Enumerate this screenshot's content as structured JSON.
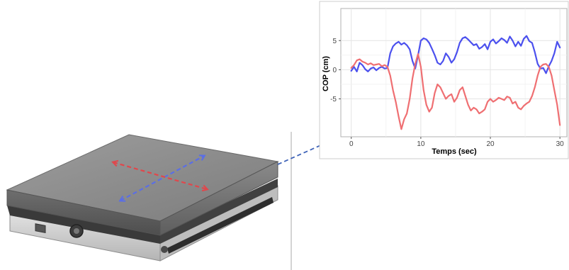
{
  "figure": {
    "colors": {
      "ap_arrow": "#5a6ee6",
      "ml_arrow": "#e0474c",
      "connector": "#3f63b8",
      "divider": "#aaaaaa"
    },
    "plate_icon": "force-plate"
  },
  "chart_data": {
    "type": "line",
    "title": "",
    "xlabel": "Temps (sec)",
    "ylabel": "COP (cm)",
    "xlim": [
      -1.5,
      31
    ],
    "ylim": [
      -11.5,
      10.5
    ],
    "xticks": [
      0,
      10,
      20,
      30
    ],
    "yticks": [
      -5,
      0,
      5
    ],
    "grid": true,
    "legend": "none",
    "series": [
      {
        "color": "#4b50ee",
        "x": [
          0,
          0.4,
          0.8,
          1.2,
          1.6,
          2.0,
          2.4,
          2.8,
          3.2,
          3.6,
          4.0,
          4.4,
          4.8,
          5.2,
          5.6,
          6.0,
          6.4,
          6.8,
          7.2,
          7.6,
          8.0,
          8.4,
          8.8,
          9.2,
          9.6,
          10.0,
          10.4,
          10.8,
          11.2,
          11.6,
          12.0,
          12.4,
          12.8,
          13.2,
          13.6,
          14.0,
          14.4,
          14.8,
          15.2,
          15.6,
          16.0,
          16.4,
          16.8,
          17.2,
          17.6,
          18.0,
          18.4,
          18.8,
          19.2,
          19.6,
          20.0,
          20.4,
          20.8,
          21.2,
          21.6,
          22.0,
          22.4,
          22.8,
          23.2,
          23.6,
          24.0,
          24.4,
          24.8,
          25.2,
          25.6,
          26.0,
          26.4,
          26.8,
          27.2,
          27.6,
          28.0,
          28.4,
          28.8,
          29.2,
          29.6,
          30.0
        ],
        "values": [
          -0.2,
          0.5,
          -0.3,
          1.2,
          0.8,
          0.1,
          -0.3,
          0.2,
          0.4,
          -0.1,
          0.3,
          0.5,
          0.2,
          0.3,
          2.8,
          4.0,
          4.5,
          4.8,
          4.3,
          4.6,
          4.2,
          3.5,
          1.5,
          0.2,
          2.5,
          5.0,
          5.4,
          5.2,
          4.6,
          3.6,
          2.5,
          1.2,
          0.9,
          1.5,
          2.8,
          2.2,
          1.2,
          1.8,
          3.0,
          4.6,
          5.4,
          5.6,
          5.2,
          4.7,
          4.2,
          4.4,
          3.6,
          3.9,
          4.4,
          3.5,
          4.8,
          5.2,
          4.5,
          4.9,
          5.4,
          5.1,
          4.6,
          5.7,
          5.0,
          4.0,
          4.8,
          4.1,
          5.3,
          5.8,
          4.9,
          4.6,
          3.0,
          1.0,
          0.2,
          0.3,
          -0.6,
          0.6,
          1.5,
          2.8,
          4.8,
          3.8
        ]
      },
      {
        "color": "#ef6f72",
        "x": [
          0,
          0.4,
          0.8,
          1.2,
          1.6,
          2.0,
          2.4,
          2.8,
          3.2,
          3.6,
          4.0,
          4.4,
          4.8,
          5.2,
          5.6,
          6.0,
          6.4,
          6.8,
          7.2,
          7.6,
          8.0,
          8.4,
          8.8,
          9.2,
          9.6,
          10.0,
          10.4,
          10.8,
          11.2,
          11.6,
          12.0,
          12.4,
          12.8,
          13.2,
          13.6,
          14.0,
          14.4,
          14.8,
          15.2,
          15.6,
          16.0,
          16.4,
          16.8,
          17.2,
          17.6,
          18.0,
          18.4,
          18.8,
          19.2,
          19.6,
          20.0,
          20.4,
          20.8,
          21.2,
          21.6,
          22.0,
          22.4,
          22.8,
          23.2,
          23.6,
          24.0,
          24.4,
          24.8,
          25.2,
          25.6,
          26.0,
          26.4,
          26.8,
          27.2,
          27.6,
          28.0,
          28.4,
          28.8,
          29.2,
          29.6,
          30.0
        ],
        "values": [
          0.3,
          0.8,
          1.6,
          1.8,
          1.4,
          1.2,
          0.9,
          1.1,
          0.8,
          0.9,
          1.0,
          0.6,
          0.8,
          0.5,
          -1.0,
          -3.5,
          -5.5,
          -8.0,
          -10.2,
          -8.5,
          -7.5,
          -5.0,
          -1.5,
          1.0,
          2.7,
          0.5,
          -3.5,
          -6.0,
          -7.2,
          -6.5,
          -4.0,
          -2.5,
          -3.0,
          -4.0,
          -5.0,
          -4.5,
          -4.2,
          -5.5,
          -4.8,
          -3.5,
          -3.0,
          -4.5,
          -6.0,
          -7.0,
          -6.5,
          -6.8,
          -7.5,
          -7.2,
          -6.8,
          -5.5,
          -5.0,
          -5.5,
          -5.2,
          -4.8,
          -5.0,
          -5.2,
          -4.6,
          -4.8,
          -5.8,
          -5.5,
          -6.5,
          -6.8,
          -6.2,
          -5.8,
          -5.5,
          -4.5,
          -3.0,
          -1.0,
          0.5,
          0.9,
          1.0,
          0.5,
          -1.0,
          -3.5,
          -6.0,
          -9.5
        ]
      }
    ]
  }
}
